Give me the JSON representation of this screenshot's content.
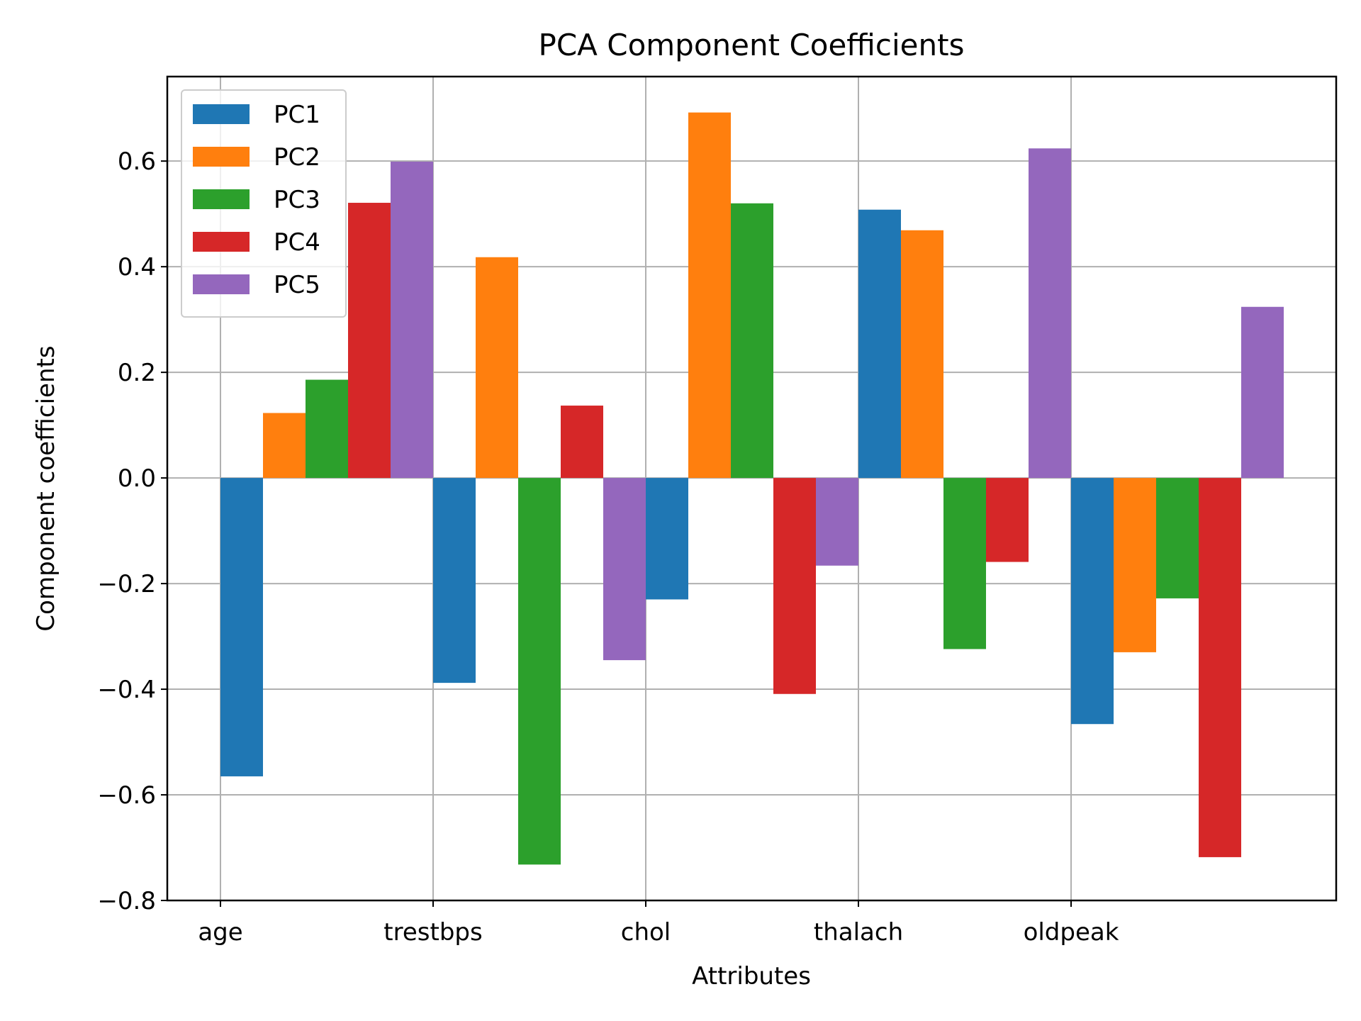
{
  "chart_data": {
    "type": "bar",
    "title": "PCA Component Coefficients",
    "xlabel": "Attributes",
    "ylabel": "Component coefficients",
    "categories": [
      "age",
      "trestbps",
      "chol",
      "thalach",
      "oldpeak"
    ],
    "series": [
      {
        "name": "PC1",
        "color": "#1f77b4",
        "values": [
          -0.565,
          -0.388,
          -0.23,
          0.508,
          -0.466
        ]
      },
      {
        "name": "PC2",
        "color": "#ff7f0e",
        "values": [
          0.123,
          0.418,
          0.692,
          0.469,
          -0.33
        ]
      },
      {
        "name": "PC3",
        "color": "#2ca02c",
        "values": [
          0.186,
          -0.732,
          0.52,
          -0.324,
          -0.228
        ]
      },
      {
        "name": "PC4",
        "color": "#d62728",
        "values": [
          0.521,
          0.137,
          -0.409,
          -0.159,
          -0.718
        ]
      },
      {
        "name": "PC5",
        "color": "#9467bd",
        "values": [
          0.599,
          -0.345,
          -0.166,
          0.624,
          0.324
        ]
      }
    ],
    "yticks": [
      "0.6",
      "0.4",
      "0.2",
      "0.0",
      "−0.2",
      "−0.4",
      "−0.6",
      "−0.8"
    ],
    "ytick_values": [
      0.6,
      0.4,
      0.2,
      0.0,
      -0.2,
      -0.4,
      -0.6,
      -0.8
    ],
    "ylim": [
      -0.8,
      0.76
    ],
    "grid": true,
    "legend_position": "top-left"
  }
}
